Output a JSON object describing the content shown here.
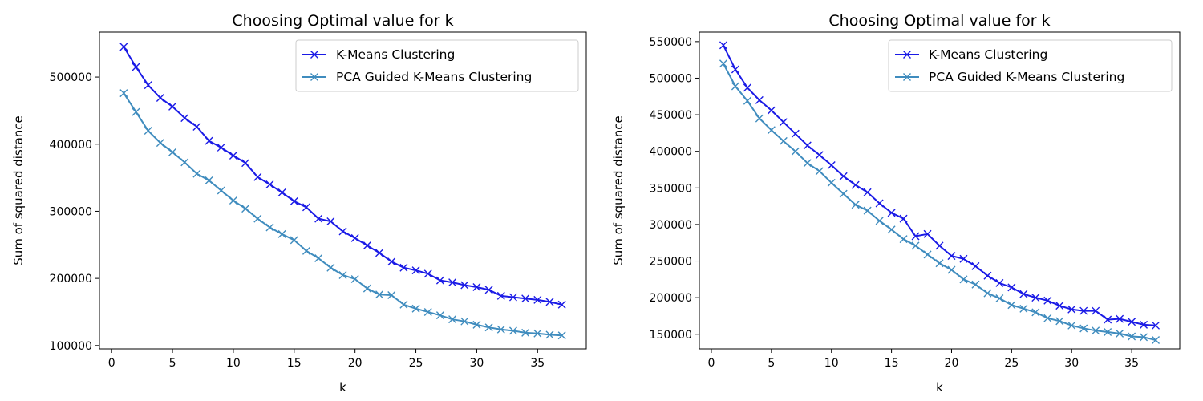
{
  "chart_data": [
    {
      "type": "line",
      "title": "Choosing Optimal value for k",
      "xlabel": "k",
      "ylabel": "Sum of squared distance",
      "xlim": [
        -1,
        39
      ],
      "ylim": [
        95000,
        567000
      ],
      "xticks": [
        "0",
        "5",
        "10",
        "15",
        "20",
        "25",
        "30",
        "35"
      ],
      "yticks": [
        "100000",
        "200000",
        "300000",
        "400000",
        "500000"
      ],
      "grid": false,
      "legend_position": "top-right",
      "marker": "x",
      "x": [
        1,
        2,
        3,
        4,
        5,
        6,
        7,
        8,
        9,
        10,
        11,
        12,
        13,
        14,
        15,
        16,
        17,
        18,
        19,
        20,
        21,
        22,
        23,
        24,
        25,
        26,
        27,
        28,
        29,
        30,
        31,
        32,
        33,
        34,
        35,
        36,
        37
      ],
      "series": [
        {
          "name": "K-Means Clustering",
          "color": "#1a1ae6",
          "values": [
            545000,
            515000,
            488000,
            469000,
            456000,
            439000,
            426000,
            405000,
            395000,
            383000,
            372000,
            351000,
            340000,
            328000,
            315000,
            306000,
            289000,
            285000,
            270000,
            260000,
            249000,
            238000,
            225000,
            216000,
            212000,
            207000,
            197000,
            194000,
            190000,
            187000,
            183000,
            174000,
            172000,
            170000,
            168000,
            165000,
            161000
          ]
        },
        {
          "name": "PCA Guided K-Means Clustering",
          "color": "#3f8cbe",
          "values": [
            476000,
            448000,
            420000,
            402000,
            388000,
            373000,
            356000,
            346000,
            331000,
            316000,
            304000,
            289000,
            276000,
            266000,
            257000,
            241000,
            230000,
            216000,
            205000,
            199000,
            185000,
            176000,
            175000,
            161000,
            155000,
            150000,
            145000,
            139000,
            136000,
            131000,
            127000,
            124000,
            122000,
            119000,
            118000,
            116000,
            115000
          ]
        }
      ]
    },
    {
      "type": "line",
      "title": "Choosing Optimal value for k",
      "xlabel": "k",
      "ylabel": "Sum of squared distance",
      "xlim": [
        -1,
        39
      ],
      "ylim": [
        130000,
        563000
      ],
      "xticks": [
        "0",
        "5",
        "10",
        "15",
        "20",
        "25",
        "30",
        "35"
      ],
      "yticks": [
        "150000",
        "200000",
        "250000",
        "300000",
        "350000",
        "400000",
        "450000",
        "500000",
        "550000"
      ],
      "grid": false,
      "legend_position": "top-right",
      "marker": "x",
      "x": [
        1,
        2,
        3,
        4,
        5,
        6,
        7,
        8,
        9,
        10,
        11,
        12,
        13,
        14,
        15,
        16,
        17,
        18,
        19,
        20,
        21,
        22,
        23,
        24,
        25,
        26,
        27,
        28,
        29,
        30,
        31,
        32,
        33,
        34,
        35,
        36,
        37
      ],
      "series": [
        {
          "name": "K-Means Clustering",
          "color": "#1a1ae6",
          "values": [
            545000,
            512000,
            487000,
            470000,
            456000,
            440000,
            424000,
            408000,
            395000,
            381000,
            366000,
            354000,
            344000,
            329000,
            316000,
            308000,
            284000,
            287000,
            271000,
            257000,
            253000,
            243000,
            230000,
            220000,
            214000,
            205000,
            200000,
            196000,
            189000,
            184000,
            182000,
            182000,
            170000,
            171000,
            167000,
            163000,
            162000
          ]
        },
        {
          "name": "PCA Guided K-Means Clustering",
          "color": "#3f8cbe",
          "values": [
            520000,
            489000,
            469000,
            445000,
            429000,
            414000,
            400000,
            384000,
            373000,
            357000,
            342000,
            327000,
            319000,
            305000,
            293000,
            280000,
            271000,
            259000,
            247000,
            238000,
            225000,
            218000,
            206000,
            199000,
            190000,
            185000,
            180000,
            172000,
            168000,
            162000,
            158000,
            155000,
            153000,
            151000,
            147000,
            146000,
            142000
          ]
        }
      ]
    }
  ]
}
